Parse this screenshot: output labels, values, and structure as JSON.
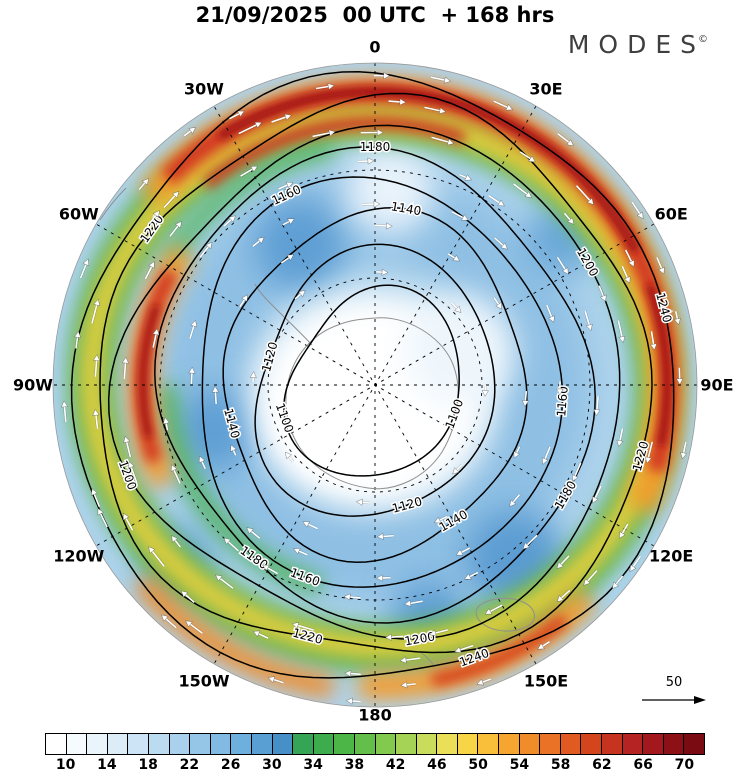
{
  "header": {
    "title": "21/09/2025  00 UTC  + 168 hrs",
    "logo_text": "MODES",
    "logo_mark": "©"
  },
  "chart_data": {
    "type": "heatmap",
    "description": "Southern Hemisphere polar stereographic chart: shaded speed field with height contours and wind vector arrows",
    "title": "21/09/2025  00 UTC  + 168 hrs",
    "longitude_labels_clockwise_from_top": [
      "0",
      "30E",
      "60E",
      "90E",
      "120E",
      "150E",
      "180",
      "150W",
      "120W",
      "90W",
      "60W",
      "30W"
    ],
    "contours": {
      "labeled_levels": [
        "1100",
        "1120",
        "1140",
        "1160",
        "1180",
        "1200",
        "1220",
        "1240"
      ],
      "interval": 20
    },
    "colorbar": {
      "tick_labels": [
        "10",
        "14",
        "18",
        "22",
        "26",
        "30",
        "34",
        "38",
        "42",
        "46",
        "50",
        "54",
        "58",
        "62",
        "66",
        "70"
      ],
      "cell_colors": [
        "#ffffff",
        "#f6fbfe",
        "#eaf4fb",
        "#dcedf8",
        "#cce4f5",
        "#bbdbf1",
        "#a9d1ed",
        "#95c6e8",
        "#81bbe3",
        "#6dafdd",
        "#599fd3",
        "#478fc7",
        "#35a455",
        "#3dac4c",
        "#4cb647",
        "#63bf49",
        "#82ca4e",
        "#a5d355",
        "#c9dc5b",
        "#ecdf58",
        "#f8d447",
        "#f9bf3b",
        "#f6a531",
        "#f18c2b",
        "#ea7226",
        "#e05a21",
        "#d4451e",
        "#c63420",
        "#b52423",
        "#a3181d",
        "#8d1017",
        "#7a0b12"
      ]
    },
    "reference_vector": {
      "label": "50"
    }
  }
}
